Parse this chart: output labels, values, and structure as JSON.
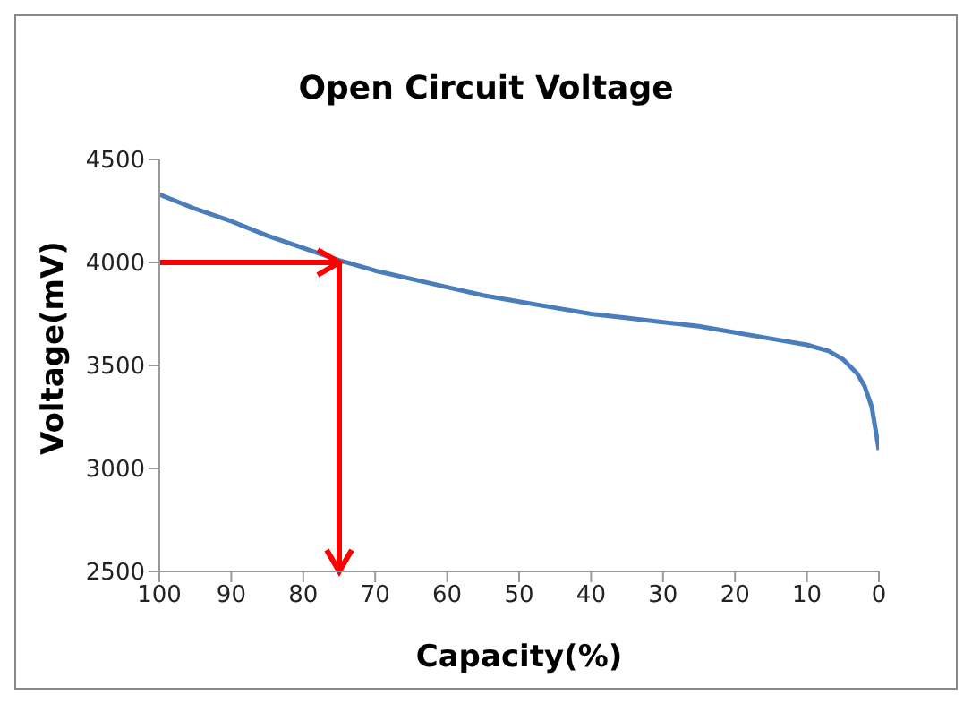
{
  "chart_data": {
    "type": "line",
    "title": "Open Circuit Voltage",
    "xlabel": "Capacity(%)",
    "ylabel": "Voltage(mV)",
    "x": [
      100,
      95,
      90,
      85,
      80,
      75,
      70,
      65,
      60,
      55,
      50,
      45,
      40,
      35,
      30,
      25,
      20,
      15,
      10,
      7,
      5,
      3,
      2,
      1,
      0
    ],
    "series": [
      {
        "color": "#4a7ebb",
        "values": [
          4330,
          4260,
          4200,
          4130,
          4070,
          4010,
          3960,
          3920,
          3880,
          3840,
          3810,
          3780,
          3750,
          3730,
          3710,
          3690,
          3660,
          3630,
          3600,
          3570,
          3530,
          3460,
          3400,
          3300,
          3090
        ]
      }
    ],
    "xlim": [
      100,
      0
    ],
    "xticks": [
      100,
      90,
      80,
      70,
      60,
      50,
      40,
      30,
      20,
      10,
      0
    ],
    "ylim": [
      2500,
      4500
    ],
    "yticks": [
      2500,
      3000,
      3500,
      4000,
      4500
    ],
    "ref_lines": [
      {
        "axis": "y",
        "value": 4000,
        "color": "#ff0000"
      },
      {
        "axis": "x",
        "value": 75,
        "color": "#ff0000"
      }
    ],
    "grid": false,
    "legend": false,
    "marker": "none",
    "line_style": "solid"
  }
}
